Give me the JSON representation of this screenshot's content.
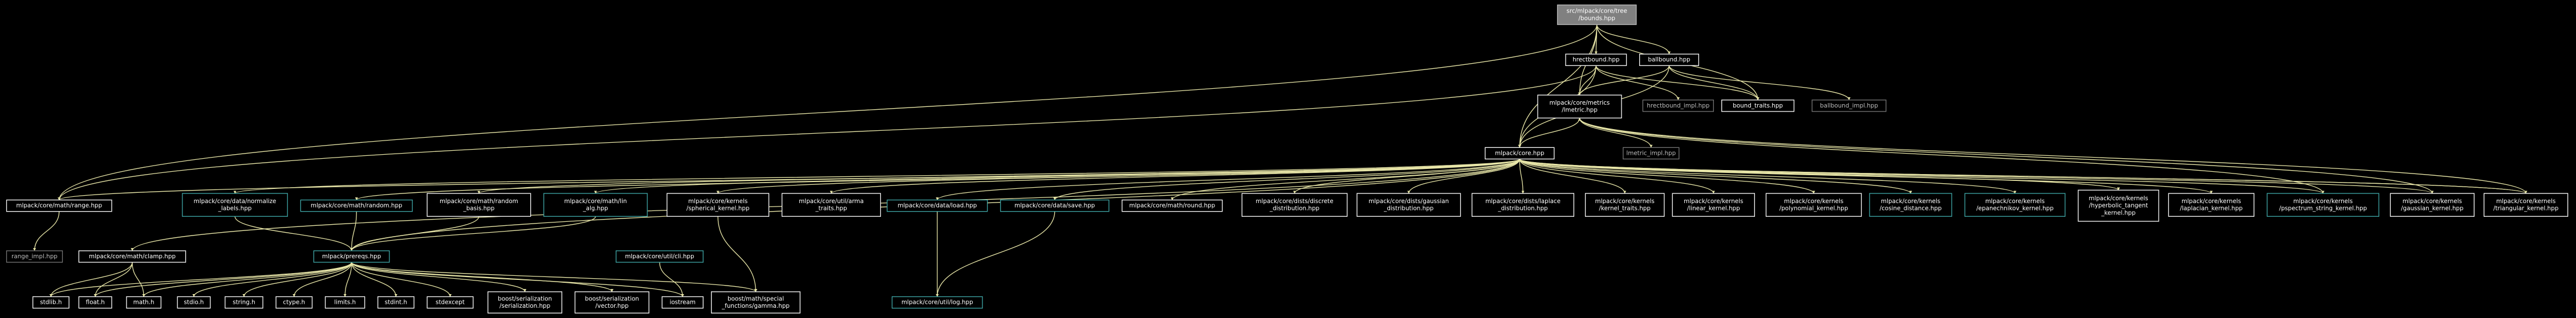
{
  "nodes": [
    {
      "label": [
        "src/mlpack/core/tree",
        "/bounds.hpp"
      ]
    },
    {
      "label": [
        "hrectbound.hpp"
      ]
    },
    {
      "label": [
        "ballbound.hpp"
      ]
    },
    {
      "label": [
        "mlpack/core/metrics",
        "/lmetric.hpp"
      ]
    },
    {
      "label": [
        "hrectbound_impl.hpp"
      ]
    },
    {
      "label": [
        "bound_traits.hpp"
      ]
    },
    {
      "label": [
        "ballbound_impl.hpp"
      ]
    },
    {
      "label": [
        "mlpack/core.hpp"
      ]
    },
    {
      "label": [
        "lmetric_impl.hpp"
      ]
    },
    {
      "label": [
        "mlpack/core/math/range.hpp"
      ]
    },
    {
      "label": [
        "mlpack/core/data/normalize",
        "_labels.hpp"
      ]
    },
    {
      "label": [
        "mlpack/core/math/random.hpp"
      ]
    },
    {
      "label": [
        "mlpack/core/math/random",
        "_basis.hpp"
      ]
    },
    {
      "label": [
        "mlpack/core/math/lin",
        "_alg.hpp"
      ]
    },
    {
      "label": [
        "mlpack/core/kernels",
        "/spherical_kernel.hpp"
      ]
    },
    {
      "label": [
        "mlpack/core/util/arma",
        "_traits.hpp"
      ]
    },
    {
      "label": [
        "mlpack/core/data/load.hpp"
      ]
    },
    {
      "label": [
        "mlpack/core/data/save.hpp"
      ]
    },
    {
      "label": [
        "mlpack/core/math/round.hpp"
      ]
    },
    {
      "label": [
        "mlpack/core/dists/discrete",
        "_distribution.hpp"
      ]
    },
    {
      "label": [
        "mlpack/core/dists/gaussian",
        "_distribution.hpp"
      ]
    },
    {
      "label": [
        "mlpack/core/dists/laplace",
        "_distribution.hpp"
      ]
    },
    {
      "label": [
        "mlpack/core/kernels",
        "/kernel_traits.hpp"
      ]
    },
    {
      "label": [
        "mlpack/core/kernels",
        "/linear_kernel.hpp"
      ]
    },
    {
      "label": [
        "mlpack/core/kernels",
        "/polynomial_kernel.hpp"
      ]
    },
    {
      "label": [
        "mlpack/core/kernels",
        "/cosine_distance.hpp"
      ]
    },
    {
      "label": [
        "mlpack/core/kernels",
        "/epanechnikov_kernel.hpp"
      ]
    },
    {
      "label": [
        "mlpack/core/kernels",
        "/hyperbolic_tangent",
        "_kernel.hpp"
      ]
    },
    {
      "label": [
        "mlpack/core/kernels",
        "/laplacian_kernel.hpp"
      ]
    },
    {
      "label": [
        "mlpack/core/kernels",
        "/pspectrum_string_kernel.hpp"
      ]
    },
    {
      "label": [
        "mlpack/core/kernels",
        "/gaussian_kernel.hpp"
      ]
    },
    {
      "label": [
        "mlpack/core/kernels",
        "/triangular_kernel.hpp"
      ]
    },
    {
      "label": [
        "range_impl.hpp"
      ]
    },
    {
      "label": [
        "mlpack/core/math/clamp.hpp"
      ]
    },
    {
      "label": [
        "mlpack/prereqs.hpp"
      ]
    },
    {
      "label": [
        "mlpack/core/util/cli.hpp"
      ]
    },
    {
      "label": [
        "mlpack/core/util/log.hpp"
      ]
    },
    {
      "label": [
        "stdlib.h"
      ]
    },
    {
      "label": [
        "float.h"
      ]
    },
    {
      "label": [
        "math.h"
      ]
    },
    {
      "label": [
        "stdio.h"
      ]
    },
    {
      "label": [
        "string.h"
      ]
    },
    {
      "label": [
        "ctype.h"
      ]
    },
    {
      "label": [
        "limits.h"
      ]
    },
    {
      "label": [
        "stdint.h"
      ]
    },
    {
      "label": [
        "stdexcept"
      ]
    },
    {
      "label": [
        "boost/serialization",
        "/serialization.hpp"
      ]
    },
    {
      "label": [
        "boost/serialization",
        "/vector.hpp"
      ]
    },
    {
      "label": [
        "iostream"
      ]
    },
    {
      "label": [
        "boost/math/special",
        "_functions/gamma.hpp"
      ]
    }
  ]
}
